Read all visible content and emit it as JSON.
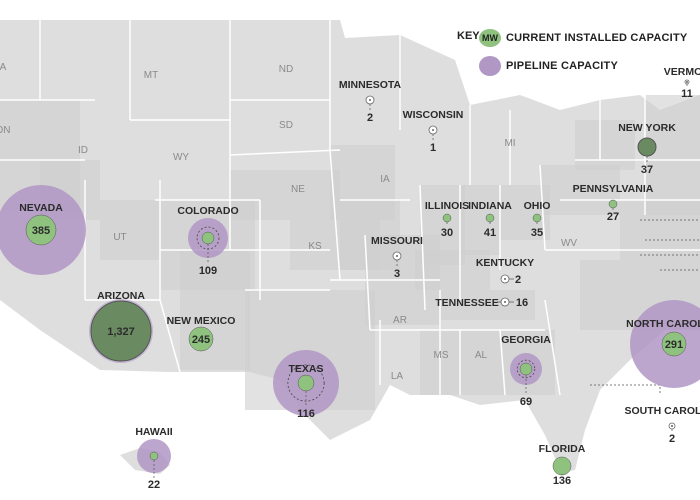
{
  "key": {
    "title": "KEY",
    "unit": "MW",
    "current_label": "CURRENT INSTALLED CAPACITY",
    "pipeline_label": "PIPELINE CAPACITY"
  },
  "colors": {
    "land": "#dedede",
    "land_dark": "#cfcfcf",
    "border": "#ffffff",
    "current": "#8fc27f",
    "current_dark": "#6a8a62",
    "pipeline": "#b197c4",
    "pipeline_dark": "#8e6fa6",
    "text": "#2b2b2b",
    "faint_text": "#8a8a8a"
  },
  "abbreviations": [
    "MT",
    "ND",
    "SD",
    "WY",
    "ID",
    "NE",
    "UT",
    "KS",
    "IA",
    "MI",
    "WV",
    "AR",
    "MS",
    "AL",
    "LA",
    "ON",
    "A"
  ],
  "states": [
    {
      "name": "NEVADA",
      "value": "385"
    },
    {
      "name": "ARIZONA",
      "value": "1,327"
    },
    {
      "name": "COLORADO",
      "value": "109"
    },
    {
      "name": "NEW MEXICO",
      "value": "245"
    },
    {
      "name": "TEXAS",
      "value": "116"
    },
    {
      "name": "HAWAII",
      "value": "22"
    },
    {
      "name": "MINNESOTA",
      "value": "2"
    },
    {
      "name": "WISCONSIN",
      "value": "1"
    },
    {
      "name": "MISSOURI",
      "value": "3"
    },
    {
      "name": "ILLINOIS",
      "value": "30"
    },
    {
      "name": "INDIANA",
      "value": "41"
    },
    {
      "name": "OHIO",
      "value": "35"
    },
    {
      "name": "KENTUCKY",
      "value": "2"
    },
    {
      "name": "TENNESSEE",
      "value": "16"
    },
    {
      "name": "GEORGIA",
      "value": "69"
    },
    {
      "name": "FLORIDA",
      "value": "136"
    },
    {
      "name": "PENNSYLVANIA",
      "value": "27"
    },
    {
      "name": "NEW YORK",
      "value": "37"
    },
    {
      "name": "VERMONT",
      "value": "11"
    },
    {
      "name": "NORTH CAROLINA",
      "value": "291"
    },
    {
      "name": "SOUTH CAROLINA",
      "value": "2"
    }
  ]
}
